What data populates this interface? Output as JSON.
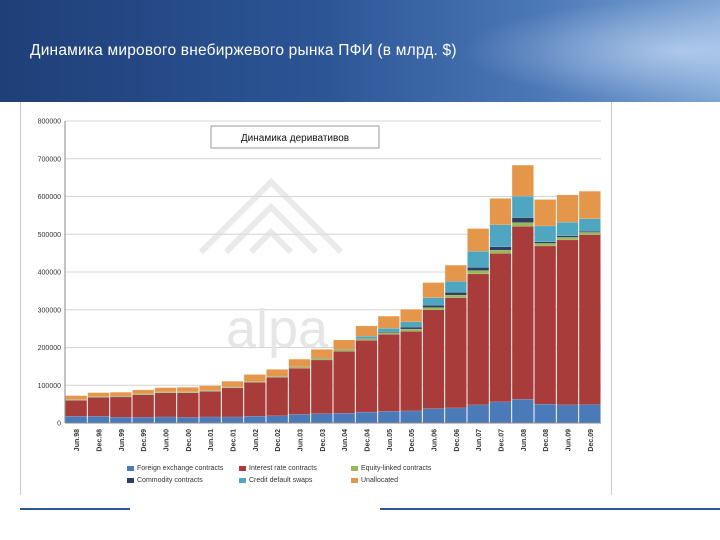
{
  "slide": {
    "title": "Динамика мирового внебиржевого рынка ПФИ (в млрд. $)"
  },
  "chart_data": {
    "type": "bar",
    "stacked": true,
    "title": "Динамика деривативов",
    "xlabel": "",
    "ylabel": "",
    "ylim": [
      0,
      800000
    ],
    "y_ticks": [
      "0",
      "100000",
      "200000",
      "300000",
      "400000",
      "500000",
      "600000",
      "700000",
      "800000"
    ],
    "grid": true,
    "legend_position": "bottom",
    "watermark": "alpa",
    "categories": [
      "Jun.98",
      "Dec.98",
      "Jun.99",
      "Dec.99",
      "Jun.00",
      "Dec.00",
      "Jun.01",
      "Dec.01",
      "Jun.02",
      "Dec.02",
      "Jun.03",
      "Dec.03",
      "Jun.04",
      "Dec.04",
      "Jun.05",
      "Dec.05",
      "Jun.06",
      "Dec.06",
      "Jun.07",
      "Dec.07",
      "Jun.08",
      "Dec.08",
      "Jun.09",
      "Dec.09"
    ],
    "series": [
      {
        "name": "Foreign exchange contracts",
        "color": "#4a7ab8",
        "values": [
          18000,
          18000,
          15000,
          15000,
          16000,
          15000,
          16000,
          16000,
          18000,
          19000,
          23000,
          25000,
          26000,
          29000,
          31000,
          32000,
          38000,
          40000,
          48000,
          56000,
          63000,
          50000,
          48000,
          49000
        ]
      },
      {
        "name": "Interest rate contracts",
        "color": "#a83c3a",
        "values": [
          42000,
          50000,
          54000,
          60000,
          64000,
          65000,
          68000,
          77000,
          90000,
          102000,
          122000,
          142000,
          164000,
          190000,
          204000,
          211000,
          262000,
          292000,
          347000,
          393000,
          458000,
          419000,
          437000,
          450000
        ]
      },
      {
        "name": "Equity-linked contracts",
        "color": "#99b958",
        "values": [
          2000,
          2000,
          2000,
          2000,
          2000,
          2000,
          2000,
          2000,
          2000,
          2000,
          3000,
          4000,
          4000,
          4000,
          4000,
          6000,
          6000,
          7000,
          9000,
          9000,
          10000,
          7000,
          7000,
          6000
        ]
      },
      {
        "name": "Commodity contracts",
        "color": "#2d3e63",
        "values": [
          500,
          500,
          500,
          500,
          500,
          500,
          500,
          500,
          500,
          1000,
          1000,
          1000,
          1000,
          1000,
          2000,
          5000,
          6000,
          7000,
          8000,
          9000,
          13000,
          4000,
          4000,
          3000
        ]
      },
      {
        "name": "Credit default swaps",
        "color": "#4fa6c0",
        "values": [
          0,
          0,
          0,
          0,
          0,
          0,
          0,
          0,
          0,
          0,
          0,
          0,
          0,
          6000,
          10000,
          14000,
          20000,
          29000,
          43000,
          58000,
          57000,
          42000,
          36000,
          33000
        ]
      },
      {
        "name": "Unallocated",
        "color": "#e4964b",
        "values": [
          10000,
          10000,
          10000,
          10000,
          11000,
          12000,
          12000,
          15000,
          18000,
          18000,
          20000,
          23000,
          25000,
          27000,
          32000,
          33000,
          40000,
          43000,
          60000,
          70000,
          82000,
          70000,
          72000,
          73000
        ]
      }
    ]
  }
}
